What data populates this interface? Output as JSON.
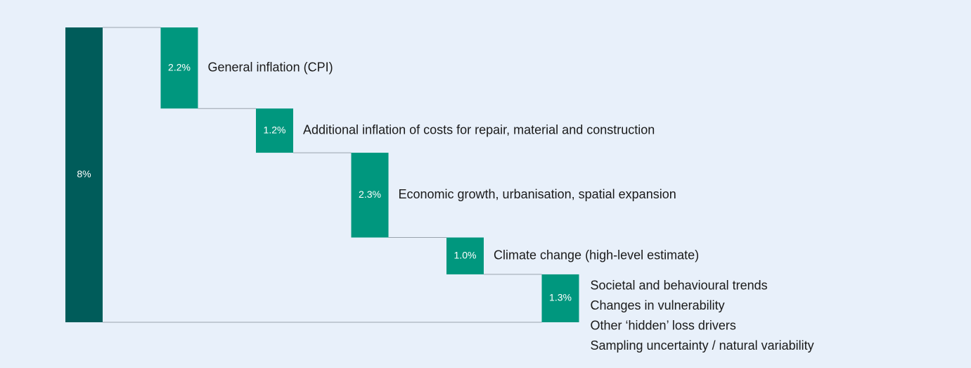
{
  "chart_data": {
    "type": "waterfall",
    "total": 8,
    "total_label": "8%",
    "total_color": "#005c5a",
    "categories": [
      "General inflation (CPI)",
      "Additional inflation of costs for repair, material and construction",
      "Economic growth, urbanisation, spatial expansion",
      "Climate change (high-level estimate)",
      [
        "Societal and behavioural trends",
        "Changes in vulnerability",
        "Other ‘hidden’ loss drivers",
        "Sampling uncertainty / natural variability"
      ]
    ],
    "values": [
      2.2,
      1.2,
      2.3,
      1.0,
      1.3
    ],
    "value_labels": [
      "2.2%",
      "1.2%",
      "2.3%",
      "1.0%",
      "1.3%"
    ],
    "color": "#00977e"
  }
}
